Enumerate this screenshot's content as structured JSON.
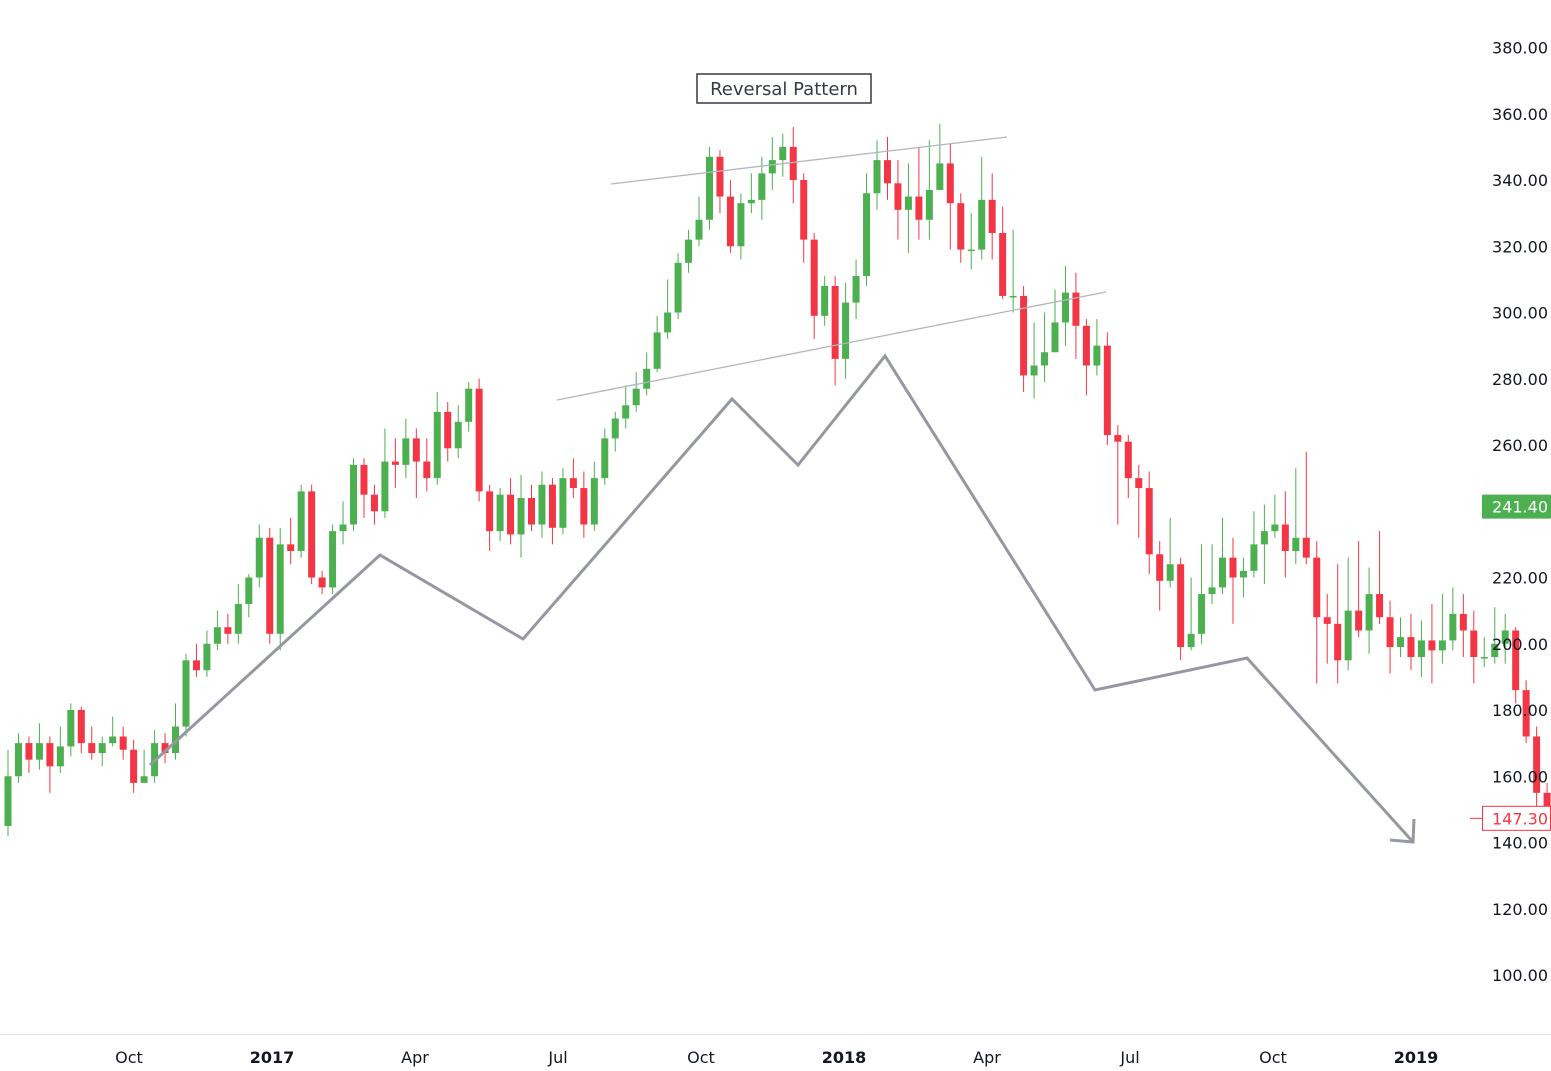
{
  "chart_data": {
    "type": "candlestick",
    "title": "",
    "annotation": "Reversal Pattern",
    "y_axis": {
      "ticks": [
        "380.00",
        "360.00",
        "340.00",
        "320.00",
        "300.00",
        "280.00",
        "260.00",
        "240.00",
        "220.00",
        "200.00",
        "180.00",
        "160.00",
        "140.00",
        "120.00",
        "100.00"
      ],
      "range": [
        85,
        390
      ],
      "position": "right"
    },
    "x_axis": {
      "labels": [
        {
          "text": "Oct",
          "date": "2016-10",
          "bold": false
        },
        {
          "text": "2017",
          "date": "2017-01",
          "bold": true
        },
        {
          "text": "Apr",
          "date": "2017-04",
          "bold": false
        },
        {
          "text": "Jul",
          "date": "2017-07",
          "bold": false
        },
        {
          "text": "Oct",
          "date": "2017-10",
          "bold": false
        },
        {
          "text": "2018",
          "date": "2018-01",
          "bold": true
        },
        {
          "text": "Apr",
          "date": "2018-04",
          "bold": false
        },
        {
          "text": "Jul",
          "date": "2018-07",
          "bold": false
        },
        {
          "text": "Oct",
          "date": "2018-10",
          "bold": false
        },
        {
          "text": "2019",
          "date": "2019-01",
          "bold": true
        }
      ]
    },
    "price_badges": [
      {
        "label": "241.40",
        "value": 241.4,
        "style": "filled",
        "color": "#4caf50"
      },
      {
        "label": "147.30",
        "value": 147.3,
        "style": "outline",
        "color": "#f23645"
      }
    ],
    "colors": {
      "up": "#4caf50",
      "down": "#f23645",
      "pattern_line": "#9598a1",
      "trend_line": "#b2b5be"
    },
    "grid": false,
    "candles": [
      [
        145,
        160,
        168,
        142
      ],
      [
        160,
        170,
        173,
        158
      ],
      [
        170,
        165,
        172,
        161
      ],
      [
        165,
        170,
        176,
        162
      ],
      [
        170,
        163,
        172,
        155
      ],
      [
        163,
        169,
        175,
        161
      ],
      [
        169,
        180,
        182,
        166
      ],
      [
        180,
        170,
        181,
        167
      ],
      [
        170,
        167,
        175,
        165
      ],
      [
        167,
        170,
        172,
        163
      ],
      [
        170,
        172,
        178,
        169
      ],
      [
        172,
        168,
        175,
        165
      ],
      [
        168,
        158,
        171,
        155
      ],
      [
        158,
        160,
        168,
        158
      ],
      [
        160,
        170,
        174,
        158
      ],
      [
        170,
        167,
        173,
        164
      ],
      [
        167,
        175,
        182,
        165
      ],
      [
        175,
        195,
        197,
        172
      ],
      [
        195,
        192,
        200,
        190
      ],
      [
        192,
        200,
        204,
        190
      ],
      [
        200,
        205,
        210,
        198
      ],
      [
        205,
        203,
        209,
        200
      ],
      [
        203,
        212,
        218,
        200
      ],
      [
        212,
        220,
        221,
        208
      ],
      [
        220,
        232,
        236,
        217
      ],
      [
        232,
        203,
        235,
        200
      ],
      [
        203,
        230,
        235,
        198
      ],
      [
        230,
        228,
        238,
        224
      ],
      [
        228,
        246,
        248,
        226
      ],
      [
        246,
        220,
        248,
        218
      ],
      [
        220,
        217,
        222,
        215
      ],
      [
        217,
        234,
        236,
        215
      ],
      [
        234,
        236,
        243,
        230
      ],
      [
        236,
        254,
        256,
        234
      ],
      [
        254,
        245,
        256,
        238
      ],
      [
        245,
        240,
        248,
        236
      ],
      [
        240,
        255,
        265,
        238
      ],
      [
        255,
        254,
        262,
        247
      ],
      [
        254,
        262,
        268,
        250
      ],
      [
        262,
        255,
        265,
        244
      ],
      [
        255,
        250,
        262,
        246
      ],
      [
        250,
        270,
        276,
        248
      ],
      [
        270,
        259,
        273,
        255
      ],
      [
        259,
        267,
        272,
        256
      ],
      [
        267,
        277,
        279,
        264
      ],
      [
        277,
        246,
        280,
        243
      ],
      [
        246,
        234,
        248,
        228
      ],
      [
        234,
        245,
        247,
        231
      ],
      [
        245,
        233,
        250,
        230
      ],
      [
        233,
        244,
        251,
        226
      ],
      [
        244,
        236,
        248,
        234
      ],
      [
        236,
        248,
        252,
        232
      ],
      [
        248,
        235,
        250,
        230
      ],
      [
        235,
        250,
        253,
        233
      ],
      [
        250,
        247,
        256,
        244
      ],
      [
        247,
        236,
        252,
        232
      ],
      [
        236,
        250,
        255,
        234
      ],
      [
        250,
        262,
        265,
        248
      ],
      [
        262,
        268,
        270,
        258
      ],
      [
        268,
        272,
        278,
        265
      ],
      [
        272,
        277,
        282,
        270
      ],
      [
        277,
        283,
        288,
        275
      ],
      [
        283,
        294,
        299,
        282
      ],
      [
        294,
        300,
        310,
        292
      ],
      [
        300,
        315,
        318,
        298
      ],
      [
        315,
        322,
        325,
        312
      ],
      [
        322,
        328,
        335,
        320
      ],
      [
        328,
        347,
        350,
        325
      ],
      [
        347,
        335,
        349,
        330
      ],
      [
        335,
        320,
        340,
        318
      ],
      [
        320,
        333,
        336,
        316
      ],
      [
        333,
        334,
        342,
        330
      ],
      [
        334,
        342,
        347,
        328
      ],
      [
        342,
        346,
        353,
        337
      ],
      [
        346,
        350,
        354,
        341
      ],
      [
        350,
        340,
        356,
        333
      ],
      [
        340,
        322,
        342,
        315
      ],
      [
        322,
        299,
        324,
        292
      ],
      [
        299,
        308,
        311,
        296
      ],
      [
        308,
        286,
        311,
        278
      ],
      [
        286,
        303,
        309,
        280
      ],
      [
        303,
        311,
        316,
        298
      ],
      [
        311,
        336,
        342,
        308
      ],
      [
        336,
        346,
        352,
        331
      ],
      [
        346,
        339,
        353,
        334
      ],
      [
        339,
        331,
        346,
        322
      ],
      [
        331,
        335,
        345,
        318
      ],
      [
        335,
        328,
        350,
        322
      ],
      [
        328,
        337,
        352,
        322
      ],
      [
        337,
        345,
        357,
        337
      ],
      [
        345,
        333,
        351,
        319
      ],
      [
        333,
        319,
        336,
        315
      ],
      [
        319,
        319,
        330,
        313
      ],
      [
        319,
        334,
        347,
        316
      ],
      [
        334,
        324,
        342,
        316
      ],
      [
        324,
        305,
        332,
        304
      ],
      [
        305,
        305,
        325,
        300
      ],
      [
        305,
        281,
        308,
        276
      ],
      [
        281,
        284,
        297,
        274
      ],
      [
        284,
        288,
        300,
        279
      ],
      [
        288,
        297,
        307,
        288
      ],
      [
        297,
        306,
        314,
        290
      ],
      [
        306,
        296,
        312,
        286
      ],
      [
        296,
        284,
        298,
        275
      ],
      [
        284,
        290,
        298,
        281
      ],
      [
        290,
        263,
        294,
        260
      ],
      [
        263,
        261,
        266,
        236
      ],
      [
        261,
        250,
        263,
        244
      ],
      [
        250,
        247,
        254,
        232
      ],
      [
        247,
        227,
        252,
        221
      ],
      [
        227,
        219,
        231,
        210
      ],
      [
        219,
        224,
        238,
        217
      ],
      [
        224,
        199,
        226,
        195
      ],
      [
        199,
        203,
        220,
        198
      ],
      [
        203,
        215,
        230,
        200
      ],
      [
        215,
        217,
        230,
        212
      ],
      [
        217,
        226,
        238,
        215
      ],
      [
        226,
        220,
        232,
        206
      ],
      [
        220,
        222,
        226,
        214
      ],
      [
        222,
        230,
        240,
        220
      ],
      [
        230,
        234,
        242,
        218
      ],
      [
        234,
        236,
        245,
        232
      ],
      [
        236,
        228,
        246,
        220
      ],
      [
        228,
        232,
        253,
        224
      ],
      [
        232,
        226,
        258,
        224
      ],
      [
        226,
        208,
        231,
        188
      ],
      [
        208,
        206,
        215,
        194
      ],
      [
        206,
        195,
        224,
        188
      ],
      [
        195,
        210,
        226,
        192
      ],
      [
        210,
        204,
        231,
        202
      ],
      [
        204,
        215,
        223,
        197
      ],
      [
        215,
        208,
        234,
        206
      ],
      [
        208,
        199,
        213,
        191
      ],
      [
        199,
        202,
        208,
        196
      ],
      [
        202,
        196,
        209,
        192
      ],
      [
        196,
        201,
        207,
        190
      ],
      [
        201,
        198,
        212,
        188
      ],
      [
        198,
        201,
        215,
        194
      ],
      [
        201,
        209,
        217,
        198
      ],
      [
        209,
        204,
        215,
        196
      ],
      [
        204,
        196,
        210,
        188
      ],
      [
        196,
        196,
        202,
        193
      ],
      [
        196,
        200,
        211,
        194
      ],
      [
        200,
        204,
        209,
        194
      ],
      [
        204,
        186,
        205,
        182
      ],
      [
        186,
        172,
        189,
        170
      ],
      [
        172,
        155,
        175,
        150
      ],
      [
        155,
        147,
        158,
        145
      ]
    ]
  }
}
